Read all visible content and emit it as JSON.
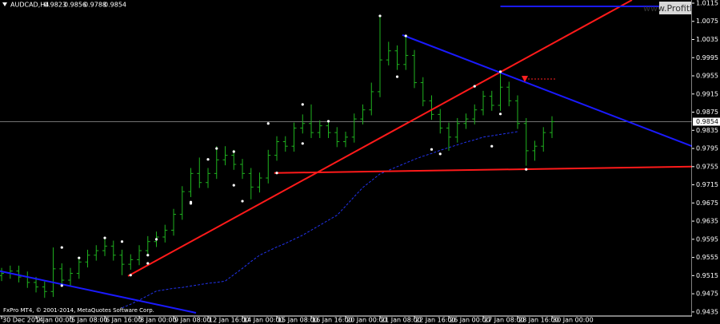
{
  "header": {
    "symbol": "AUDCAD,H4",
    "ohlc": [
      0.9823,
      0.9856,
      0.9788,
      0.9854
    ],
    "copyright": "FxPro MT4, © 2001-2014, MetaQuotes Software Corp.",
    "watermark": "www.ProfitF.com"
  },
  "chart_data": {
    "type": "ohlc",
    "categories": [
      "30 Dec 2014",
      null,
      null,
      null,
      "2 Jan 00:00",
      null,
      null,
      null,
      "5 Jan 08:00",
      null,
      null,
      null,
      "6 Jan 16:00",
      null,
      null,
      null,
      "8 Jan 00:00",
      null,
      null,
      null,
      "9 Jan 08:00",
      null,
      null,
      null,
      "12 Jan 16:00",
      null,
      null,
      null,
      "14 Jan 00:00",
      null,
      null,
      null,
      "15 Jan 08:00",
      null,
      null,
      null,
      "16 Jan 16:00",
      null,
      null,
      null,
      "20 Jan 00:00",
      null,
      null,
      null,
      "21 Jan 08:00",
      null,
      null,
      null,
      "22 Jan 16:00",
      null,
      null,
      null,
      "26 Jan 00:00",
      null,
      null,
      null,
      "27 Jan 08:00",
      null,
      null,
      null,
      "28 Jan 16:00",
      null,
      null,
      null,
      "30 Jan 00:00"
    ],
    "open": [
      0.9515,
      0.952,
      0.9525,
      0.9512,
      0.95,
      0.949,
      0.948,
      0.953,
      0.9505,
      0.952,
      0.9545,
      0.956,
      0.957,
      0.958,
      0.956,
      0.954,
      0.955,
      0.957,
      0.959,
      0.96,
      0.9615,
      0.965,
      0.97,
      0.974,
      0.972,
      0.974,
      0.977,
      0.978,
      0.976,
      0.974,
      0.971,
      0.973,
      0.978,
      0.981,
      0.98,
      0.984,
      0.985,
      0.983,
      0.9845,
      0.983,
      0.981,
      0.982,
      0.986,
      0.988,
      0.992,
      0.999,
      1.001,
      0.998,
      1.0,
      0.994,
      0.99,
      0.987,
      0.984,
      0.982,
      0.985,
      0.986,
      0.988,
      0.991,
      0.989,
      0.993,
      0.99,
      0.985,
      0.979,
      0.98,
      0.983
    ],
    "high": [
      0.9532,
      0.9537,
      0.9537,
      0.9524,
      0.9512,
      0.9502,
      0.9577,
      0.9542,
      0.9532,
      0.9557,
      0.9572,
      0.9582,
      0.9598,
      0.9592,
      0.9572,
      0.9562,
      0.9582,
      0.9602,
      0.9612,
      0.9627,
      0.9662,
      0.9712,
      0.9752,
      0.9775,
      0.9752,
      0.98,
      0.98,
      0.9792,
      0.9772,
      0.9752,
      0.9742,
      0.9792,
      0.9822,
      0.9822,
      0.9852,
      0.987,
      0.9892,
      0.9857,
      0.9857,
      0.9842,
      0.9832,
      0.9872,
      0.9892,
      0.994,
      1.0087,
      1.003,
      1.0022,
      1.0045,
      1.0012,
      0.9952,
      0.9912,
      0.9882,
      0.9852,
      0.9862,
      0.9872,
      0.9892,
      0.9922,
      0.9922,
      0.9964,
      0.9942,
      0.9912,
      0.9862,
      0.9812,
      0.9842,
      0.9866
    ],
    "low": [
      0.9503,
      0.9508,
      0.95,
      0.9488,
      0.9478,
      0.9466,
      0.9468,
      0.9493,
      0.9493,
      0.9508,
      0.9533,
      0.9548,
      0.9558,
      0.9548,
      0.9516,
      0.9528,
      0.9538,
      0.9558,
      0.9578,
      0.9588,
      0.9603,
      0.9638,
      0.9688,
      0.9708,
      0.9708,
      0.9728,
      0.9758,
      0.9748,
      0.9728,
      0.9683,
      0.9698,
      0.9718,
      0.9768,
      0.9788,
      0.9788,
      0.9828,
      0.9818,
      0.9818,
      0.9818,
      0.9798,
      0.9798,
      0.9808,
      0.9848,
      0.9868,
      0.9908,
      0.9978,
      0.9968,
      0.9968,
      0.9928,
      0.9888,
      0.9858,
      0.9828,
      0.979,
      0.9808,
      0.9838,
      0.9848,
      0.9868,
      0.9878,
      0.9878,
      0.9888,
      0.9838,
      0.9757,
      0.9768,
      0.9788,
      0.9818
    ],
    "close": [
      0.952,
      0.9525,
      0.9512,
      0.95,
      0.949,
      0.948,
      0.953,
      0.9505,
      0.952,
      0.9545,
      0.956,
      0.957,
      0.958,
      0.956,
      0.954,
      0.955,
      0.957,
      0.959,
      0.96,
      0.9615,
      0.965,
      0.97,
      0.974,
      0.972,
      0.974,
      0.977,
      0.978,
      0.976,
      0.974,
      0.971,
      0.973,
      0.978,
      0.981,
      0.98,
      0.984,
      0.985,
      0.983,
      0.9845,
      0.983,
      0.981,
      0.982,
      0.986,
      0.988,
      0.992,
      0.999,
      1.001,
      0.998,
      1.0,
      0.994,
      0.99,
      0.987,
      0.984,
      0.982,
      0.985,
      0.986,
      0.988,
      0.991,
      0.989,
      0.993,
      0.99,
      0.985,
      0.979,
      0.98,
      0.983,
      0.9854
    ],
    "color": "#1fb31f",
    "moving_average": {
      "color": "#2233ee",
      "values": [
        null,
        null,
        null,
        null,
        null,
        null,
        null,
        null,
        null,
        null,
        null,
        null,
        null,
        null,
        0.9444,
        0.9452,
        0.9461,
        0.9471,
        0.9481,
        0.9484,
        0.9487,
        0.9489,
        0.9492,
        0.9495,
        0.9498,
        0.95,
        0.9503,
        0.9517,
        0.9531,
        0.9546,
        0.956,
        0.9569,
        0.9578,
        0.9586,
        0.9595,
        0.9604,
        0.9615,
        0.9626,
        0.9637,
        0.9648,
        0.9668,
        0.9689,
        0.9709,
        0.9724,
        0.9739,
        0.9747,
        0.9755,
        0.9763,
        0.9771,
        0.9778,
        0.9784,
        0.9791,
        0.9797,
        0.9803,
        0.9809,
        0.9814,
        0.982,
        0.9823,
        0.9826,
        0.9829,
        0.9832,
        null,
        null,
        null,
        null
      ]
    },
    "trendlines": [
      {
        "color": "#ff1a1a",
        "x": [
          14.7,
          73.3
        ],
        "y": [
          0.9514,
          1.0122
        ]
      },
      {
        "color": "#ff1a1a",
        "x": [
          31.7,
          80.28
        ],
        "y": [
          0.9741,
          0.9755
        ]
      },
      {
        "color": "#1a1aff",
        "x": [
          46.6,
          80.28
        ],
        "y": [
          1.0045,
          0.98
        ]
      },
      {
        "color": "#1a1aff",
        "x": [
          -0.19,
          22.6
        ],
        "y": [
          0.9525,
          0.9433
        ]
      },
      {
        "color": "#1a1aff",
        "x": [
          58,
          80.28
        ],
        "y": [
          1.0108,
          1.0108
        ]
      }
    ],
    "fractals": [
      {
        "x": 7,
        "y": 0.9577
      },
      {
        "x": 9,
        "y": 0.9554
      },
      {
        "x": 12,
        "y": 0.9598
      },
      {
        "x": 14,
        "y": 0.959
      },
      {
        "x": 17,
        "y": 0.956
      },
      {
        "x": 18,
        "y": 0.9595
      },
      {
        "x": 22,
        "y": 0.9677
      },
      {
        "x": 24,
        "y": 0.9771
      },
      {
        "x": 25,
        "y": 0.9795
      },
      {
        "x": 27,
        "y": 0.9788
      },
      {
        "x": 31,
        "y": 0.985
      },
      {
        "x": 35,
        "y": 0.9892
      },
      {
        "x": 38,
        "y": 0.9855
      },
      {
        "x": 44,
        "y": 1.0087
      },
      {
        "x": 47,
        "y": 1.0043
      },
      {
        "x": 55,
        "y": 0.9932
      },
      {
        "x": 58,
        "y": 0.9964
      },
      {
        "x": 7,
        "y": 0.9493
      },
      {
        "x": 15,
        "y": 0.9516
      },
      {
        "x": 17,
        "y": 0.9542
      },
      {
        "x": 22,
        "y": 0.9674
      },
      {
        "x": 27,
        "y": 0.9714
      },
      {
        "x": 28,
        "y": 0.9679
      },
      {
        "x": 32,
        "y": 0.9741
      },
      {
        "x": 35,
        "y": 0.9806
      },
      {
        "x": 46,
        "y": 0.9953
      },
      {
        "x": 50,
        "y": 0.9793
      },
      {
        "x": 51,
        "y": 0.9783
      },
      {
        "x": 57,
        "y": 0.98
      },
      {
        "x": 58,
        "y": 0.9871
      },
      {
        "x": 61,
        "y": 0.9749
      }
    ],
    "bid": 0.9854,
    "xlim": [
      -0.19,
      80.28
    ],
    "ylim": [
      0.9426,
      1.0122
    ],
    "yticks": [
      1.0115,
      1.0075,
      1.0035,
      0.9995,
      0.9955,
      0.9915,
      0.9875,
      0.9835,
      0.9795,
      0.9755,
      0.9715,
      0.9675,
      0.9635,
      0.9595,
      0.9555,
      0.9515,
      0.9475,
      0.9435
    ]
  }
}
